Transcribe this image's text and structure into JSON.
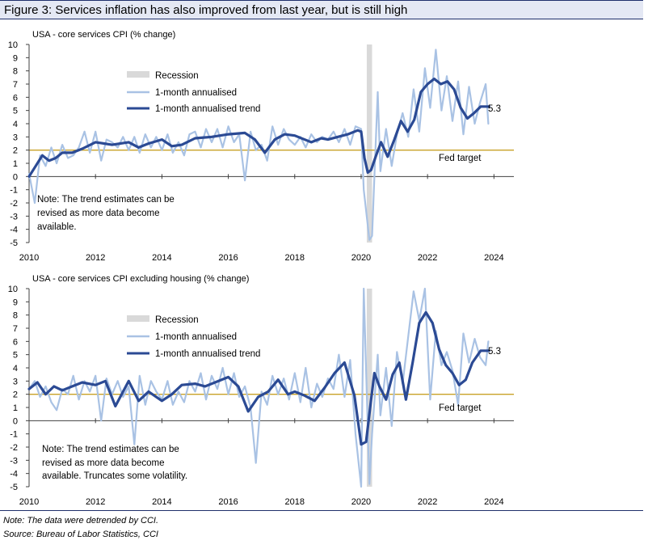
{
  "figure_title": "Figure 3: Services inflation has also improved from last year, but is still high",
  "colors": {
    "raw": "#a9c2e4",
    "trend": "#2b4a94",
    "recession": "#d9d9d9",
    "fed_target": "#c9a227",
    "title_band": "#e4e8f4",
    "rule": "#1f2f6b"
  },
  "chart_data": [
    {
      "type": "line",
      "title": "USA - core  services CPI (% change)",
      "xlabel": "",
      "ylabel": "% change",
      "xlim": [
        2010,
        2024.6
      ],
      "ylim": [
        -5,
        10
      ],
      "x_ticks": [
        2010,
        2012,
        2014,
        2016,
        2018,
        2020,
        2022,
        2024
      ],
      "x_tick_labels": [
        "2010",
        "2012",
        "2014",
        "2016",
        "2018",
        "2020",
        "2022",
        "2024"
      ],
      "y_ticks": [
        10,
        9,
        8,
        7,
        6,
        5,
        4,
        3,
        2,
        1,
        0,
        -1,
        -2,
        -3,
        -4,
        -5
      ],
      "y_tick_labels": [
        "10",
        "9",
        "8",
        "7",
        "6",
        "5",
        "4",
        "3",
        "2",
        "1",
        "0",
        "-1",
        "-2",
        "-3",
        "-4",
        "-5"
      ],
      "recession": {
        "start": 2020.17,
        "end": 2020.33
      },
      "fed_target": {
        "value": 2,
        "label": "Fed target"
      },
      "legend": {
        "recession": "Recession",
        "raw": "1-month annualised",
        "trend": "1-month annualised trend"
      },
      "end_label": "5.3",
      "note": [
        "Note: The trend estimates can be",
        "revised as more data become",
        "available."
      ],
      "series": [
        {
          "name": "1-month annualised",
          "x": [
            2010.0,
            2010.17,
            2010.33,
            2010.5,
            2010.67,
            2010.83,
            2011.0,
            2011.17,
            2011.33,
            2011.5,
            2011.67,
            2011.83,
            2012.0,
            2012.17,
            2012.33,
            2012.5,
            2012.67,
            2012.83,
            2013.0,
            2013.17,
            2013.33,
            2013.5,
            2013.67,
            2013.83,
            2014.0,
            2014.17,
            2014.33,
            2014.5,
            2014.67,
            2014.83,
            2015.0,
            2015.17,
            2015.33,
            2015.5,
            2015.67,
            2015.83,
            2016.0,
            2016.17,
            2016.33,
            2016.5,
            2016.67,
            2016.83,
            2017.0,
            2017.17,
            2017.33,
            2017.5,
            2017.67,
            2017.83,
            2018.0,
            2018.17,
            2018.33,
            2018.5,
            2018.67,
            2018.83,
            2019.0,
            2019.17,
            2019.33,
            2019.5,
            2019.67,
            2019.83,
            2020.0,
            2020.08,
            2020.25,
            2020.33,
            2020.5,
            2020.58,
            2020.75,
            2020.92,
            2021.08,
            2021.25,
            2021.42,
            2021.58,
            2021.75,
            2021.92,
            2022.08,
            2022.25,
            2022.42,
            2022.58,
            2022.75,
            2022.92,
            2023.08,
            2023.25,
            2023.42,
            2023.58,
            2023.75,
            2023.83
          ],
          "values": [
            0.2,
            -2.0,
            1.6,
            0.8,
            2.2,
            1.0,
            2.4,
            1.4,
            1.6,
            2.2,
            3.4,
            1.8,
            3.4,
            1.2,
            2.8,
            2.6,
            2.2,
            3.0,
            2.0,
            3.0,
            1.8,
            3.2,
            2.2,
            3.0,
            2.0,
            3.2,
            1.8,
            2.6,
            1.6,
            3.2,
            3.4,
            2.2,
            3.6,
            2.6,
            3.6,
            2.2,
            3.8,
            2.6,
            3.2,
            -0.3,
            3.4,
            2.0,
            2.4,
            1.2,
            3.8,
            2.4,
            3.6,
            2.8,
            2.4,
            3.0,
            2.2,
            3.2,
            2.6,
            3.0,
            2.8,
            3.4,
            2.6,
            3.6,
            2.4,
            3.8,
            3.6,
            -1.0,
            -4.8,
            -4.5,
            6.4,
            0.4,
            3.6,
            0.8,
            3.2,
            4.8,
            3.0,
            6.6,
            3.4,
            8.2,
            5.2,
            9.6,
            5.0,
            7.6,
            4.2,
            7.2,
            3.2,
            6.8,
            4.0,
            5.6,
            7.0,
            4.0
          ]
        },
        {
          "name": "1-month annualised trend",
          "x": [
            2010.0,
            2010.2,
            2010.4,
            2010.6,
            2010.8,
            2011.0,
            2011.3,
            2011.6,
            2012.0,
            2012.5,
            2013.0,
            2013.3,
            2013.6,
            2014.0,
            2014.3,
            2014.6,
            2015.0,
            2015.5,
            2016.0,
            2016.5,
            2016.8,
            2017.1,
            2017.4,
            2017.7,
            2018.0,
            2018.5,
            2018.8,
            2019.0,
            2019.3,
            2019.6,
            2019.9,
            2020.0,
            2020.1,
            2020.2,
            2020.3,
            2020.45,
            2020.6,
            2020.8,
            2021.0,
            2021.2,
            2021.4,
            2021.6,
            2021.8,
            2022.0,
            2022.2,
            2022.4,
            2022.6,
            2022.8,
            2023.0,
            2023.2,
            2023.4,
            2023.6,
            2023.75,
            2023.85
          ],
          "values": [
            0.0,
            0.8,
            1.6,
            1.2,
            1.4,
            1.8,
            1.8,
            2.1,
            2.6,
            2.4,
            2.6,
            2.2,
            2.5,
            2.8,
            2.3,
            2.4,
            2.9,
            3.0,
            3.2,
            3.3,
            2.8,
            1.8,
            2.8,
            3.2,
            3.1,
            2.6,
            2.9,
            2.8,
            3.0,
            3.2,
            3.5,
            3.4,
            1.4,
            0.3,
            0.5,
            1.6,
            2.6,
            1.5,
            2.8,
            4.2,
            3.4,
            4.3,
            6.4,
            7.0,
            7.4,
            7.0,
            7.2,
            6.6,
            5.2,
            4.4,
            4.8,
            5.3,
            5.3,
            5.3
          ]
        }
      ]
    },
    {
      "type": "line",
      "title": "USA - core  services CPI excluding housing (% change)",
      "xlabel": "",
      "ylabel": "% change",
      "xlim": [
        2010,
        2024.6
      ],
      "ylim": [
        -5,
        10
      ],
      "x_ticks": [
        2010,
        2012,
        2014,
        2016,
        2018,
        2020,
        2022,
        2024
      ],
      "x_tick_labels": [
        "2010",
        "2012",
        "2014",
        "2016",
        "2018",
        "2020",
        "2022",
        "2024"
      ],
      "y_ticks": [
        10,
        9,
        8,
        7,
        6,
        5,
        4,
        3,
        2,
        1,
        0,
        -1,
        -2,
        -3,
        -4,
        -5
      ],
      "y_tick_labels": [
        "10",
        "9",
        "8",
        "7",
        "6",
        "5",
        "4",
        "3",
        "2",
        "1",
        "0",
        "-1",
        "-2",
        "-3",
        "-4",
        "-5"
      ],
      "recession": {
        "start": 2020.17,
        "end": 2020.33
      },
      "fed_target": {
        "value": 2,
        "label": "Fed target"
      },
      "legend": {
        "recession": "Recession",
        "raw": "1-month annualised",
        "trend": "1-month annualised trend"
      },
      "end_label": "5.3",
      "note": [
        "Note: The trend estimates can be",
        "revised as more data become",
        "available.  Truncates some volatility."
      ],
      "series": [
        {
          "name": "1-month annualised",
          "x": [
            2010.0,
            2010.17,
            2010.33,
            2010.5,
            2010.67,
            2010.83,
            2011.0,
            2011.17,
            2011.33,
            2011.5,
            2011.67,
            2011.83,
            2012.0,
            2012.17,
            2012.33,
            2012.5,
            2012.67,
            2012.83,
            2013.0,
            2013.17,
            2013.33,
            2013.5,
            2013.67,
            2013.83,
            2014.0,
            2014.17,
            2014.33,
            2014.5,
            2014.67,
            2014.83,
            2015.0,
            2015.17,
            2015.33,
            2015.5,
            2015.67,
            2015.83,
            2016.0,
            2016.17,
            2016.33,
            2016.5,
            2016.67,
            2016.83,
            2017.0,
            2017.17,
            2017.33,
            2017.5,
            2017.67,
            2017.83,
            2018.0,
            2018.17,
            2018.33,
            2018.5,
            2018.67,
            2018.83,
            2019.0,
            2019.17,
            2019.33,
            2019.5,
            2019.67,
            2019.83,
            2020.0,
            2020.08,
            2020.25,
            2020.33,
            2020.5,
            2020.58,
            2020.75,
            2020.92,
            2021.08,
            2021.25,
            2021.42,
            2021.58,
            2021.75,
            2021.92,
            2022.08,
            2022.25,
            2022.42,
            2022.58,
            2022.75,
            2022.92,
            2023.08,
            2023.25,
            2023.42,
            2023.58,
            2023.75,
            2023.83
          ],
          "values": [
            2.4,
            3.0,
            1.8,
            2.6,
            1.4,
            0.8,
            2.4,
            2.0,
            3.4,
            1.6,
            3.0,
            2.2,
            3.4,
            0.0,
            3.2,
            2.0,
            3.0,
            1.8,
            2.6,
            -1.8,
            3.4,
            1.2,
            3.0,
            2.2,
            1.6,
            3.0,
            1.2,
            2.2,
            1.4,
            3.0,
            2.2,
            3.6,
            1.6,
            3.4,
            2.4,
            4.0,
            2.0,
            3.6,
            1.8,
            2.6,
            1.0,
            -3.2,
            2.2,
            1.2,
            3.4,
            2.0,
            3.2,
            1.6,
            3.6,
            1.4,
            4.0,
            1.0,
            2.8,
            1.8,
            3.2,
            2.4,
            5.0,
            1.8,
            4.6,
            -1.0,
            -5.0,
            10.0,
            -4.8,
            -1.0,
            5.0,
            0.4,
            4.0,
            -0.4,
            5.2,
            2.8,
            6.4,
            9.8,
            7.6,
            10.0,
            1.6,
            6.8,
            4.2,
            5.2,
            3.8,
            1.2,
            6.6,
            4.4,
            6.2,
            4.8,
            4.2,
            6.0
          ]
        },
        {
          "name": "1-month annualised trend",
          "x": [
            2010.0,
            2010.25,
            2010.5,
            2010.75,
            2011.0,
            2011.3,
            2011.6,
            2012.0,
            2012.3,
            2012.6,
            2013.0,
            2013.3,
            2013.6,
            2014.0,
            2014.3,
            2014.6,
            2015.0,
            2015.3,
            2015.6,
            2016.0,
            2016.3,
            2016.6,
            2016.9,
            2017.2,
            2017.5,
            2017.8,
            2018.0,
            2018.3,
            2018.6,
            2018.9,
            2019.2,
            2019.5,
            2019.8,
            2020.0,
            2020.15,
            2020.3,
            2020.4,
            2020.55,
            2020.75,
            2020.95,
            2021.15,
            2021.35,
            2021.55,
            2021.75,
            2021.95,
            2022.15,
            2022.35,
            2022.55,
            2022.75,
            2022.95,
            2023.15,
            2023.35,
            2023.6,
            2023.75,
            2023.85
          ],
          "values": [
            2.4,
            2.9,
            2.0,
            2.6,
            2.3,
            2.6,
            2.9,
            2.7,
            3.0,
            1.1,
            3.0,
            1.5,
            2.2,
            1.5,
            2.0,
            2.7,
            2.8,
            2.6,
            2.9,
            3.3,
            2.6,
            0.7,
            1.8,
            2.2,
            3.1,
            2.0,
            2.2,
            1.9,
            1.5,
            2.5,
            3.6,
            4.4,
            1.9,
            -1.8,
            -1.6,
            1.6,
            3.6,
            2.6,
            1.6,
            3.5,
            4.4,
            1.6,
            4.4,
            7.4,
            8.2,
            7.4,
            5.4,
            4.2,
            3.6,
            2.7,
            3.1,
            4.4,
            5.3,
            5.3,
            5.3
          ]
        }
      ]
    }
  ],
  "footnotes": {
    "note": "Note: The data were detrended by CCI.",
    "source": "Source: Bureau of Labor Statistics, CCI"
  }
}
